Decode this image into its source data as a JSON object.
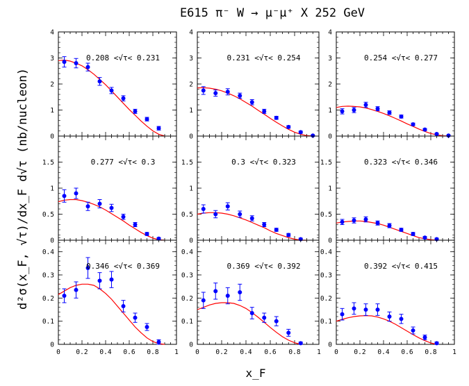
{
  "figure": {
    "title": "E615 π⁻ W → μ⁻μ⁺ X  252 GeV",
    "ylabel": "d²σ(x_F, √τ)/dx_F d√τ  (nb/nucleon)",
    "xlabel": "x_F"
  },
  "colors": {
    "points": "#0000ff",
    "curve": "#ff0000",
    "axes": "#000000"
  },
  "chart_data": [
    {
      "type": "scatter",
      "title": "0.208 <√τ< 0.231",
      "xlim": [
        0,
        1
      ],
      "ylim": [
        0,
        4
      ],
      "y_ticks": [
        0,
        1,
        2,
        3,
        4
      ],
      "x_ticks": [],
      "series": [
        {
          "kind": "points",
          "x": [
            0.05,
            0.15,
            0.25,
            0.35,
            0.45,
            0.55,
            0.65,
            0.75,
            0.85
          ],
          "y": [
            2.85,
            2.8,
            2.65,
            2.1,
            1.75,
            1.45,
            0.95,
            0.65,
            0.3
          ],
          "err": [
            0.2,
            0.18,
            0.15,
            0.15,
            0.12,
            0.1,
            0.08,
            0.07,
            0.07
          ]
        },
        {
          "kind": "curve",
          "x": [
            0.0,
            0.05,
            0.1,
            0.15,
            0.2,
            0.25,
            0.3,
            0.35,
            0.4,
            0.45,
            0.5,
            0.55,
            0.6,
            0.65,
            0.7,
            0.75,
            0.8,
            0.85,
            0.9
          ],
          "y": [
            2.9,
            2.92,
            2.88,
            2.8,
            2.7,
            2.55,
            2.38,
            2.18,
            1.97,
            1.74,
            1.5,
            1.26,
            1.02,
            0.8,
            0.58,
            0.38,
            0.2,
            0.07,
            0.0
          ]
        }
      ]
    },
    {
      "type": "scatter",
      "title": "0.231 <√τ< 0.254",
      "xlim": [
        0,
        1
      ],
      "ylim": [
        0,
        4
      ],
      "y_ticks": [
        0,
        1,
        2,
        3,
        4
      ],
      "x_ticks": [],
      "series": [
        {
          "kind": "points",
          "x": [
            0.05,
            0.15,
            0.25,
            0.35,
            0.45,
            0.55,
            0.65,
            0.75,
            0.85,
            0.95
          ],
          "y": [
            1.75,
            1.65,
            1.7,
            1.55,
            1.3,
            0.95,
            0.7,
            0.35,
            0.15,
            0.02
          ],
          "err": [
            0.15,
            0.12,
            0.12,
            0.1,
            0.1,
            0.08,
            0.06,
            0.05,
            0.04,
            0.02
          ]
        },
        {
          "kind": "curve",
          "x": [
            0.0,
            0.05,
            0.1,
            0.15,
            0.2,
            0.25,
            0.3,
            0.35,
            0.4,
            0.45,
            0.5,
            0.55,
            0.6,
            0.65,
            0.7,
            0.75,
            0.8,
            0.85,
            0.9,
            0.95
          ],
          "y": [
            1.85,
            1.86,
            1.84,
            1.8,
            1.74,
            1.65,
            1.55,
            1.43,
            1.29,
            1.15,
            0.99,
            0.84,
            0.68,
            0.53,
            0.39,
            0.26,
            0.15,
            0.07,
            0.02,
            0.0
          ]
        }
      ]
    },
    {
      "type": "scatter",
      "title": "0.254 <√τ< 0.277",
      "xlim": [
        0,
        1
      ],
      "ylim": [
        0,
        4
      ],
      "y_ticks": [
        0,
        1,
        2,
        3,
        4
      ],
      "x_ticks": [],
      "series": [
        {
          "kind": "points",
          "x": [
            0.05,
            0.15,
            0.25,
            0.35,
            0.45,
            0.55,
            0.65,
            0.75,
            0.85,
            0.95
          ],
          "y": [
            0.95,
            1.0,
            1.2,
            1.05,
            0.9,
            0.75,
            0.45,
            0.25,
            0.08,
            0.02
          ],
          "err": [
            0.1,
            0.1,
            0.1,
            0.08,
            0.07,
            0.06,
            0.05,
            0.04,
            0.03,
            0.02
          ]
        },
        {
          "kind": "curve",
          "x": [
            0.0,
            0.05,
            0.1,
            0.15,
            0.2,
            0.25,
            0.3,
            0.35,
            0.4,
            0.45,
            0.5,
            0.55,
            0.6,
            0.65,
            0.7,
            0.75,
            0.8,
            0.85,
            0.9,
            0.95
          ],
          "y": [
            1.1,
            1.14,
            1.15,
            1.14,
            1.12,
            1.08,
            1.02,
            0.95,
            0.87,
            0.78,
            0.68,
            0.58,
            0.47,
            0.37,
            0.27,
            0.18,
            0.1,
            0.05,
            0.01,
            0.0
          ]
        }
      ]
    },
    {
      "type": "scatter",
      "title": "0.277 <√τ< 0.3",
      "xlim": [
        0,
        1
      ],
      "ylim": [
        0,
        2
      ],
      "y_ticks": [
        0,
        0.5,
        1,
        1.5
      ],
      "x_ticks": [],
      "series": [
        {
          "kind": "points",
          "x": [
            0.05,
            0.15,
            0.25,
            0.35,
            0.45,
            0.55,
            0.65,
            0.75,
            0.85
          ],
          "y": [
            0.85,
            0.9,
            0.65,
            0.7,
            0.62,
            0.45,
            0.3,
            0.12,
            0.03
          ],
          "err": [
            0.12,
            0.1,
            0.08,
            0.08,
            0.07,
            0.05,
            0.04,
            0.03,
            0.02
          ]
        },
        {
          "kind": "curve",
          "x": [
            0.0,
            0.05,
            0.1,
            0.15,
            0.2,
            0.25,
            0.3,
            0.35,
            0.4,
            0.45,
            0.5,
            0.55,
            0.6,
            0.65,
            0.7,
            0.75,
            0.8,
            0.85,
            0.9
          ],
          "y": [
            0.74,
            0.77,
            0.78,
            0.78,
            0.76,
            0.73,
            0.69,
            0.64,
            0.58,
            0.51,
            0.44,
            0.37,
            0.29,
            0.22,
            0.15,
            0.09,
            0.04,
            0.01,
            0.0
          ]
        }
      ]
    },
    {
      "type": "scatter",
      "title": "0.3 <√τ< 0.323",
      "xlim": [
        0,
        1
      ],
      "ylim": [
        0,
        2
      ],
      "y_ticks": [
        0,
        0.5,
        1,
        1.5
      ],
      "x_ticks": [],
      "series": [
        {
          "kind": "points",
          "x": [
            0.05,
            0.15,
            0.25,
            0.35,
            0.45,
            0.55,
            0.65,
            0.75,
            0.85
          ],
          "y": [
            0.6,
            0.5,
            0.65,
            0.5,
            0.42,
            0.3,
            0.2,
            0.1,
            0.02
          ],
          "err": [
            0.08,
            0.07,
            0.07,
            0.06,
            0.05,
            0.04,
            0.03,
            0.03,
            0.02
          ]
        },
        {
          "kind": "curve",
          "x": [
            0.0,
            0.05,
            0.1,
            0.15,
            0.2,
            0.25,
            0.3,
            0.35,
            0.4,
            0.45,
            0.5,
            0.55,
            0.6,
            0.65,
            0.7,
            0.75,
            0.8,
            0.85,
            0.9
          ],
          "y": [
            0.5,
            0.52,
            0.53,
            0.53,
            0.52,
            0.5,
            0.47,
            0.43,
            0.39,
            0.34,
            0.29,
            0.24,
            0.18,
            0.13,
            0.09,
            0.05,
            0.02,
            0.0,
            0.0
          ]
        }
      ]
    },
    {
      "type": "scatter",
      "title": "0.323 <√τ< 0.346",
      "xlim": [
        0,
        1
      ],
      "ylim": [
        0,
        2
      ],
      "y_ticks": [
        0,
        0.5,
        1,
        1.5
      ],
      "x_ticks": [],
      "series": [
        {
          "kind": "points",
          "x": [
            0.05,
            0.15,
            0.25,
            0.35,
            0.45,
            0.55,
            0.65,
            0.75,
            0.85
          ],
          "y": [
            0.35,
            0.38,
            0.4,
            0.33,
            0.28,
            0.2,
            0.12,
            0.05,
            0.02
          ],
          "err": [
            0.05,
            0.05,
            0.05,
            0.04,
            0.04,
            0.03,
            0.03,
            0.02,
            0.02
          ]
        },
        {
          "kind": "curve",
          "x": [
            0.0,
            0.05,
            0.1,
            0.15,
            0.2,
            0.25,
            0.3,
            0.35,
            0.4,
            0.45,
            0.5,
            0.55,
            0.6,
            0.65,
            0.7,
            0.75,
            0.8,
            0.85
          ],
          "y": [
            0.33,
            0.35,
            0.36,
            0.37,
            0.37,
            0.36,
            0.34,
            0.32,
            0.29,
            0.25,
            0.21,
            0.17,
            0.13,
            0.09,
            0.05,
            0.03,
            0.01,
            0.0
          ]
        }
      ]
    },
    {
      "type": "scatter",
      "title": "0.346 <√τ< 0.369",
      "xlim": [
        0,
        1
      ],
      "ylim": [
        0,
        0.45
      ],
      "y_ticks": [
        0,
        0.1,
        0.2,
        0.3,
        0.4
      ],
      "x_ticks": [
        0,
        0.2,
        0.4,
        0.6,
        0.8,
        1
      ],
      "series": [
        {
          "kind": "points",
          "x": [
            0.05,
            0.15,
            0.25,
            0.35,
            0.45,
            0.55,
            0.65,
            0.75,
            0.85
          ],
          "y": [
            0.21,
            0.235,
            0.33,
            0.275,
            0.28,
            0.165,
            0.115,
            0.075,
            0.01
          ],
          "err": [
            0.03,
            0.035,
            0.045,
            0.035,
            0.035,
            0.025,
            0.02,
            0.015,
            0.01
          ]
        },
        {
          "kind": "curve",
          "x": [
            0.0,
            0.05,
            0.1,
            0.15,
            0.2,
            0.25,
            0.3,
            0.35,
            0.4,
            0.45,
            0.5,
            0.55,
            0.6,
            0.65,
            0.7,
            0.75,
            0.8,
            0.85,
            0.9
          ],
          "y": [
            0.215,
            0.23,
            0.245,
            0.255,
            0.26,
            0.26,
            0.255,
            0.24,
            0.22,
            0.195,
            0.165,
            0.135,
            0.105,
            0.075,
            0.05,
            0.028,
            0.012,
            0.003,
            0.0
          ]
        }
      ]
    },
    {
      "type": "scatter",
      "title": "0.369 <√τ< 0.392",
      "xlim": [
        0,
        1
      ],
      "ylim": [
        0,
        0.45
      ],
      "y_ticks": [
        0,
        0.1,
        0.2,
        0.3,
        0.4
      ],
      "x_ticks": [
        0,
        0.2,
        0.4,
        0.6,
        0.8,
        1
      ],
      "series": [
        {
          "kind": "points",
          "x": [
            0.05,
            0.15,
            0.25,
            0.35,
            0.45,
            0.55,
            0.65,
            0.75,
            0.85
          ],
          "y": [
            0.19,
            0.23,
            0.21,
            0.225,
            0.135,
            0.115,
            0.1,
            0.05,
            0.005
          ],
          "err": [
            0.035,
            0.035,
            0.035,
            0.035,
            0.025,
            0.02,
            0.02,
            0.015,
            0.005
          ]
        },
        {
          "kind": "curve",
          "x": [
            0.0,
            0.05,
            0.1,
            0.15,
            0.2,
            0.25,
            0.3,
            0.35,
            0.4,
            0.45,
            0.5,
            0.55,
            0.6,
            0.65,
            0.7,
            0.75,
            0.8,
            0.85
          ],
          "y": [
            0.15,
            0.16,
            0.17,
            0.177,
            0.18,
            0.18,
            0.177,
            0.168,
            0.155,
            0.137,
            0.117,
            0.095,
            0.073,
            0.052,
            0.033,
            0.018,
            0.007,
            0.0
          ]
        }
      ]
    },
    {
      "type": "scatter",
      "title": "0.392 <√τ< 0.415",
      "xlim": [
        0,
        1
      ],
      "ylim": [
        0,
        0.45
      ],
      "y_ticks": [
        0,
        0.1,
        0.2,
        0.3,
        0.4
      ],
      "x_ticks": [
        0,
        0.2,
        0.4,
        0.6,
        0.8,
        1
      ],
      "series": [
        {
          "kind": "points",
          "x": [
            0.05,
            0.15,
            0.25,
            0.35,
            0.45,
            0.55,
            0.65,
            0.75,
            0.85
          ],
          "y": [
            0.13,
            0.155,
            0.15,
            0.15,
            0.12,
            0.11,
            0.06,
            0.03,
            0.005
          ],
          "err": [
            0.025,
            0.025,
            0.025,
            0.025,
            0.02,
            0.02,
            0.015,
            0.01,
            0.005
          ]
        },
        {
          "kind": "curve",
          "x": [
            0.0,
            0.05,
            0.1,
            0.15,
            0.2,
            0.25,
            0.3,
            0.35,
            0.4,
            0.45,
            0.5,
            0.55,
            0.6,
            0.65,
            0.7,
            0.75,
            0.8,
            0.85
          ],
          "y": [
            0.1,
            0.108,
            0.115,
            0.12,
            0.123,
            0.124,
            0.123,
            0.118,
            0.11,
            0.1,
            0.087,
            0.072,
            0.057,
            0.042,
            0.028,
            0.016,
            0.006,
            0.0
          ]
        }
      ]
    }
  ]
}
